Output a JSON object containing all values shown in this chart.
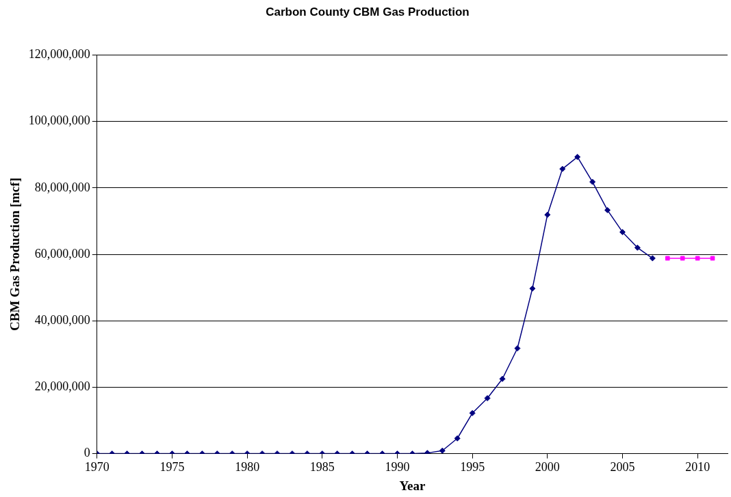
{
  "chart_data": {
    "type": "line",
    "title": "Carbon County CBM Gas Production",
    "xlabel": "Year",
    "ylabel": "CBM Gas Production [mcf]",
    "xlim": [
      1970,
      2012
    ],
    "xticks": [
      1970,
      1975,
      1980,
      1985,
      1990,
      1995,
      2000,
      2005,
      2010
    ],
    "ylim": [
      0,
      120000000
    ],
    "yticks": [
      0,
      {
        "value": 20000000,
        "label": "20,000,000"
      },
      {
        "value": 40000000,
        "label": "40,000,000"
      },
      {
        "value": 60000000,
        "label": "60,000,000"
      },
      {
        "value": 80000000,
        "label": "80,000,000"
      },
      {
        "value": 100000000,
        "label": "100,000,000"
      },
      {
        "value": 120000000,
        "label": "120,000,000"
      }
    ],
    "grid": "y",
    "legend": false,
    "line_style": "solid",
    "series": [
      {
        "color": "#000080",
        "marker": "diamond",
        "x": [
          1970,
          1971,
          1972,
          1973,
          1974,
          1975,
          1976,
          1977,
          1978,
          1979,
          1980,
          1981,
          1982,
          1983,
          1984,
          1985,
          1986,
          1987,
          1988,
          1989,
          1990,
          1991,
          1992,
          1993,
          1994,
          1995,
          1996,
          1997,
          1998,
          1999,
          2000,
          2001,
          2002,
          2003,
          2004,
          2005,
          2006,
          2007
        ],
        "values": [
          0,
          0,
          0,
          0,
          0,
          0,
          0,
          0,
          0,
          0,
          0,
          0,
          0,
          0,
          0,
          0,
          0,
          0,
          0,
          0,
          0,
          0,
          200000,
          900000,
          4600000,
          12200000,
          16700000,
          22500000,
          31700000,
          49700000,
          71900000,
          85700000,
          89300000,
          81800000,
          73300000,
          66700000,
          62000000,
          58800000
        ]
      },
      {
        "color": "#ff00ff",
        "marker": "square",
        "x": [
          2008,
          2009,
          2010,
          2011
        ],
        "values": [
          58800000,
          58800000,
          58800000,
          58800000
        ]
      }
    ]
  }
}
